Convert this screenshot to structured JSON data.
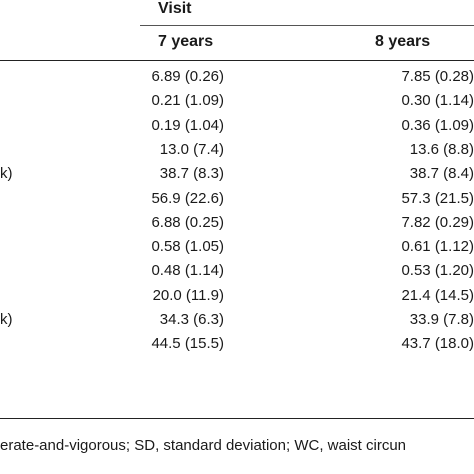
{
  "header": {
    "visit": "Visit",
    "col_7": "7 years",
    "col_8": "8 years"
  },
  "rows": [
    {
      "label": "",
      "v7": "6.89 (0.26)",
      "v8": "7.85 (0.28)"
    },
    {
      "label": "",
      "v7": "0.21 (1.09)",
      "v8": "0.30 (1.14)"
    },
    {
      "label": "",
      "v7": "0.19 (1.04)",
      "v8": "0.36 (1.09)"
    },
    {
      "label": "",
      "v7": "13.0 (7.4)",
      "v8": "13.6 (8.8)"
    },
    {
      "label": "k)",
      "v7": "38.7 (8.3)",
      "v8": "38.7 (8.4)"
    },
    {
      "label": "",
      "v7": "56.9 (22.6)",
      "v8": "57.3 (21.5)"
    },
    {
      "label": "",
      "v7": "6.88 (0.25)",
      "v8": "7.82 (0.29)"
    },
    {
      "label": "",
      "v7": "0.58 (1.05)",
      "v8": "0.61 (1.12)"
    },
    {
      "label": "",
      "v7": "0.48 (1.14)",
      "v8": "0.53 (1.20)"
    },
    {
      "label": "",
      "v7": "20.0 (11.9)",
      "v8": "21.4 (14.5)"
    },
    {
      "label": "k)",
      "v7": "34.3 (6.3)",
      "v8": "33.9 (7.8)"
    },
    {
      "label": "",
      "v7": "44.5 (15.5)",
      "v8": "43.7 (18.0)"
    }
  ],
  "footnote": "erate-and-vigorous; SD, standard deviation; WC, waist circun"
}
